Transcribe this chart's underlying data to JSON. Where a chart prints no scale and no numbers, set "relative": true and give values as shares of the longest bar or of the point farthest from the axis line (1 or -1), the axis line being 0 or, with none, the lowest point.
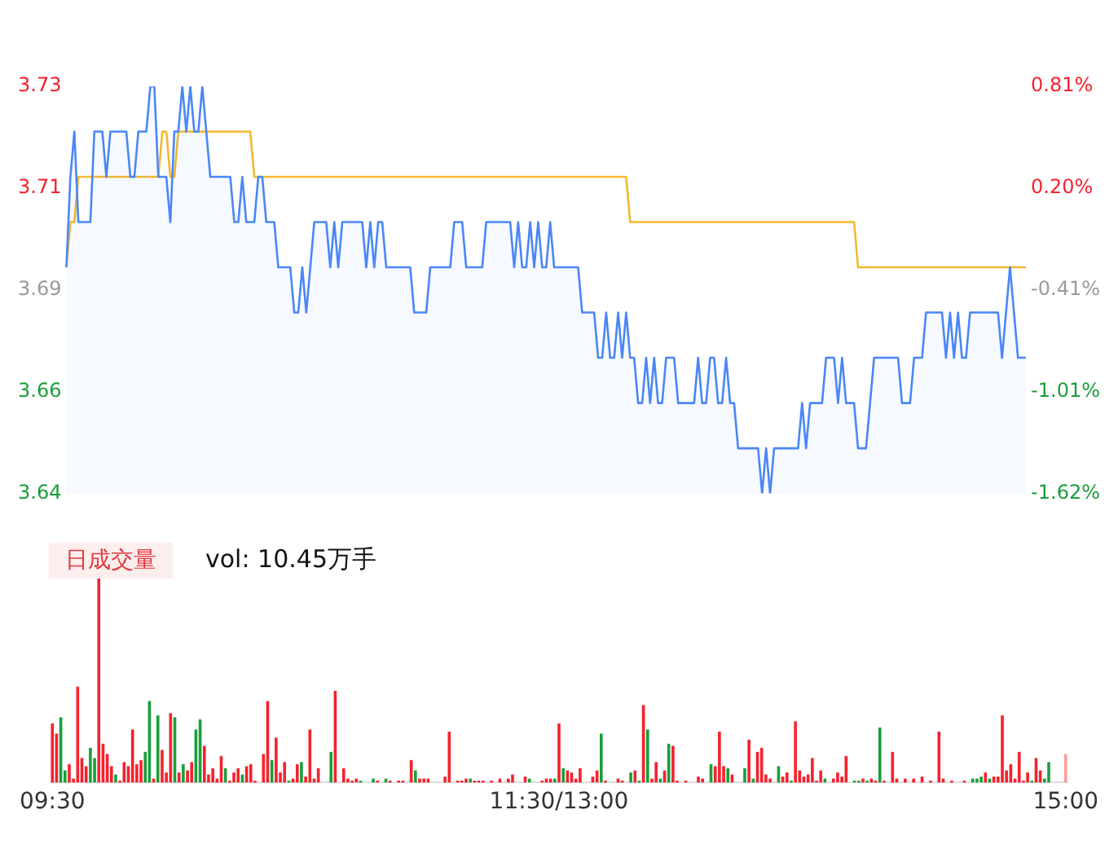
{
  "chart_data": [
    {
      "type": "line",
      "categories": [
        null,
        null,
        null,
        null,
        null,
        null,
        null,
        null,
        null,
        null,
        null,
        null,
        null,
        null,
        null,
        null,
        null,
        null,
        null,
        null,
        null,
        null,
        null,
        null,
        null,
        null,
        null,
        null,
        null,
        null,
        null,
        null,
        null,
        null,
        null,
        null,
        null,
        null,
        null,
        null,
        null,
        null,
        null,
        null,
        null,
        null,
        null,
        null,
        null,
        null,
        null,
        null,
        null,
        null,
        null,
        null,
        null,
        null,
        null,
        null,
        null,
        null,
        null,
        null,
        null,
        null,
        null,
        null,
        null,
        null,
        null,
        null,
        null,
        null,
        null,
        null,
        null,
        null,
        null,
        null,
        null,
        null,
        null,
        null,
        null,
        null,
        null,
        null,
        null,
        null,
        null,
        null,
        null,
        null,
        null,
        null,
        null,
        null,
        null,
        null,
        null,
        null,
        null,
        null,
        null,
        null,
        null,
        null,
        null,
        null,
        null,
        null,
        null,
        null,
        null,
        null,
        null,
        null,
        null,
        null,
        null,
        null,
        null,
        null,
        null,
        null,
        null,
        null,
        null,
        null,
        null,
        null,
        null,
        null,
        null,
        null,
        null,
        null,
        null,
        null,
        null,
        null,
        null,
        null,
        null,
        null,
        null,
        null,
        null,
        null,
        null,
        null,
        null,
        null,
        null,
        null,
        null,
        null,
        null,
        null,
        null,
        null,
        null,
        null,
        null,
        null,
        null,
        null,
        null,
        null,
        null,
        null,
        null,
        null,
        null,
        null,
        null,
        null,
        null,
        null,
        null,
        null,
        null,
        null,
        null,
        null,
        null,
        null,
        null,
        null,
        null,
        null,
        null,
        null,
        null,
        null,
        null,
        null,
        null,
        null,
        null,
        null,
        null,
        null,
        null,
        null,
        null,
        null,
        null,
        null,
        null,
        null,
        null,
        null,
        null,
        null,
        null,
        null,
        null,
        null,
        null,
        null,
        null,
        null,
        null,
        null,
        null,
        null,
        null,
        null,
        null,
        null,
        null,
        null,
        null,
        null,
        null,
        null,
        null,
        null,
        null
      ],
      "series": [
        {
          "type": "area",
          "color": "#4a86f7",
          "values": [
            3.69,
            3.71,
            3.72,
            3.7,
            3.7,
            3.7,
            3.7,
            3.72,
            3.72,
            3.72,
            3.71,
            3.72,
            3.72,
            3.72,
            3.72,
            3.72,
            3.71,
            3.71,
            3.72,
            3.72,
            3.72,
            3.73,
            3.73,
            3.71,
            3.71,
            3.71,
            3.7,
            3.72,
            3.72,
            3.73,
            3.72,
            3.73,
            3.72,
            3.72,
            3.73,
            3.72,
            3.71,
            3.71,
            3.71,
            3.71,
            3.71,
            3.71,
            3.7,
            3.7,
            3.71,
            3.7,
            3.7,
            3.7,
            3.71,
            3.71,
            3.7,
            3.7,
            3.7,
            3.69,
            3.69,
            3.69,
            3.69,
            3.68,
            3.68,
            3.69,
            3.68,
            3.69,
            3.7,
            3.7,
            3.7,
            3.7,
            3.69,
            3.7,
            3.69,
            3.7,
            3.7,
            3.7,
            3.7,
            3.7,
            3.7,
            3.69,
            3.7,
            3.69,
            3.7,
            3.7,
            3.69,
            3.69,
            3.69,
            3.69,
            3.69,
            3.69,
            3.69,
            3.68,
            3.68,
            3.68,
            3.68,
            3.69,
            3.69,
            3.69,
            3.69,
            3.69,
            3.69,
            3.7,
            3.7,
            3.7,
            3.69,
            3.69,
            3.69,
            3.69,
            3.69,
            3.7,
            3.7,
            3.7,
            3.7,
            3.7,
            3.7,
            3.7,
            3.69,
            3.7,
            3.69,
            3.69,
            3.7,
            3.69,
            3.7,
            3.69,
            3.69,
            3.7,
            3.69,
            3.69,
            3.69,
            3.69,
            3.69,
            3.69,
            3.69,
            3.68,
            3.68,
            3.68,
            3.68,
            3.67,
            3.67,
            3.68,
            3.67,
            3.67,
            3.68,
            3.67,
            3.68,
            3.67,
            3.67,
            3.66,
            3.66,
            3.67,
            3.66,
            3.67,
            3.66,
            3.66,
            3.67,
            3.67,
            3.67,
            3.66,
            3.66,
            3.66,
            3.66,
            3.66,
            3.67,
            3.66,
            3.66,
            3.67,
            3.67,
            3.66,
            3.66,
            3.67,
            3.66,
            3.66,
            3.65,
            3.65,
            3.65,
            3.65,
            3.65,
            3.65,
            3.64,
            3.65,
            3.64,
            3.65,
            3.65,
            3.65,
            3.65,
            3.65,
            3.65,
            3.65,
            3.66,
            3.65,
            3.66,
            3.66,
            3.66,
            3.66,
            3.67,
            3.67,
            3.67,
            3.66,
            3.67,
            3.66,
            3.66,
            3.66,
            3.65,
            3.65,
            3.65,
            3.66,
            3.67,
            3.67,
            3.67,
            3.67,
            3.67,
            3.67,
            3.67,
            3.66,
            3.66,
            3.66,
            3.67,
            3.67,
            3.67,
            3.68,
            3.68,
            3.68,
            3.68,
            3.68,
            3.67,
            3.68,
            3.67,
            3.68,
            3.67,
            3.67,
            3.68,
            3.68,
            3.68,
            3.68,
            3.68,
            3.68,
            3.68,
            3.68,
            3.67,
            3.68,
            3.69,
            3.68,
            3.67,
            3.67,
            3.67
          ]
        },
        {
          "type": "line",
          "color": "#f5b82e",
          "values": [
            3.69,
            3.7,
            3.7,
            3.71,
            3.71,
            3.71,
            3.71,
            3.71,
            3.71,
            3.71,
            3.71,
            3.71,
            3.71,
            3.71,
            3.71,
            3.71,
            3.71,
            3.71,
            3.71,
            3.71,
            3.71,
            3.71,
            3.71,
            3.71,
            3.72,
            3.72,
            3.71,
            3.71,
            3.72,
            3.72,
            3.72,
            3.72,
            3.72,
            3.72,
            3.72,
            3.72,
            3.72,
            3.72,
            3.72,
            3.72,
            3.72,
            3.72,
            3.72,
            3.72,
            3.72,
            3.72,
            3.72,
            3.71,
            3.71,
            3.71,
            3.71,
            3.71,
            3.71,
            3.71,
            3.71,
            3.71,
            3.71,
            3.71,
            3.71,
            3.71,
            3.71,
            3.71,
            3.71,
            3.71,
            3.71,
            3.71,
            3.71,
            3.71,
            3.71,
            3.71,
            3.71,
            3.71,
            3.71,
            3.71,
            3.71,
            3.71,
            3.71,
            3.71,
            3.71,
            3.71,
            3.71,
            3.71,
            3.71,
            3.71,
            3.71,
            3.71,
            3.71,
            3.71,
            3.71,
            3.71,
            3.71,
            3.71,
            3.71,
            3.71,
            3.71,
            3.71,
            3.71,
            3.71,
            3.71,
            3.71,
            3.71,
            3.71,
            3.71,
            3.71,
            3.71,
            3.71,
            3.71,
            3.71,
            3.71,
            3.71,
            3.71,
            3.71,
            3.71,
            3.71,
            3.71,
            3.71,
            3.71,
            3.71,
            3.71,
            3.71,
            3.71,
            3.71,
            3.71,
            3.71,
            3.71,
            3.71,
            3.71,
            3.71,
            3.71,
            3.71,
            3.71,
            3.71,
            3.71,
            3.71,
            3.71,
            3.71,
            3.71,
            3.71,
            3.71,
            3.71,
            3.71,
            3.7,
            3.7,
            3.7,
            3.7,
            3.7,
            3.7,
            3.7,
            3.7,
            3.7,
            3.7,
            3.7,
            3.7,
            3.7,
            3.7,
            3.7,
            3.7,
            3.7,
            3.7,
            3.7,
            3.7,
            3.7,
            3.7,
            3.7,
            3.7,
            3.7,
            3.7,
            3.7,
            3.7,
            3.7,
            3.7,
            3.7,
            3.7,
            3.7,
            3.7,
            3.7,
            3.7,
            3.7,
            3.7,
            3.7,
            3.7,
            3.7,
            3.7,
            3.7,
            3.7,
            3.7,
            3.7,
            3.7,
            3.7,
            3.7,
            3.7,
            3.7,
            3.7,
            3.7,
            3.7,
            3.7,
            3.7,
            3.7,
            3.69,
            3.69,
            3.69,
            3.69,
            3.69,
            3.69,
            3.69,
            3.69,
            3.69,
            3.69,
            3.69,
            3.69,
            3.69,
            3.69,
            3.69,
            3.69,
            3.69,
            3.69,
            3.69,
            3.69,
            3.69,
            3.69,
            3.69,
            3.69,
            3.69,
            3.69,
            3.69,
            3.69,
            3.69,
            3.69,
            3.69,
            3.69,
            3.69,
            3.69,
            3.69,
            3.69,
            3.69,
            3.69,
            3.69,
            3.69,
            3.69,
            3.69,
            3.69
          ]
        }
      ],
      "ylim": [
        3.64,
        3.73
      ],
      "yticks": [
        {
          "value": 3.64,
          "label": "3.64"
        },
        {
          "value": 3.6625,
          "label": "3.66"
        },
        {
          "value": 3.685,
          "label": "3.69"
        },
        {
          "value": 3.7075,
          "label": "3.71"
        },
        {
          "value": 3.73,
          "label": "3.73"
        }
      ],
      "y2lim": [
        -1.62,
        0.81
      ],
      "y2ticks": [
        {
          "value": -1.62,
          "label": "-1.62%"
        },
        {
          "value": -1.0125,
          "label": "-1.01%"
        },
        {
          "value": -0.405,
          "label": "-0.41%"
        },
        {
          "value": 0.2025,
          "label": "0.20%"
        },
        {
          "value": 0.81,
          "label": "0.81%"
        }
      ],
      "tick_labels": "y",
      "marker": "none"
    },
    {
      "type": "bar",
      "relative": true,
      "annotations": [
        "日成交量",
        "vol: 10.45万手"
      ],
      "categories": [
        "09:30",
        null,
        null,
        null,
        null,
        null,
        null,
        null,
        null,
        null,
        null,
        null,
        null,
        null,
        null,
        null,
        null,
        null,
        null,
        null,
        null,
        null,
        null,
        null,
        null,
        null,
        null,
        null,
        null,
        null,
        null,
        null,
        null,
        null,
        null,
        null,
        null,
        null,
        null,
        null,
        null,
        null,
        null,
        null,
        null,
        null,
        null,
        null,
        null,
        null,
        null,
        null,
        null,
        null,
        null,
        null,
        null,
        null,
        null,
        null,
        null,
        null,
        null,
        null,
        null,
        null,
        null,
        null,
        null,
        null,
        null,
        null,
        null,
        null,
        null,
        null,
        null,
        null,
        null,
        null,
        null,
        null,
        null,
        null,
        null,
        null,
        null,
        null,
        null,
        null,
        null,
        null,
        null,
        null,
        null,
        null,
        null,
        null,
        null,
        null,
        null,
        null,
        null,
        null,
        null,
        null,
        null,
        null,
        null,
        null,
        null,
        null,
        null,
        null,
        null,
        null,
        null,
        null,
        null,
        null,
        "11:30/13:00",
        null,
        null,
        null,
        null,
        null,
        null,
        null,
        null,
        null,
        null,
        null,
        null,
        null,
        null,
        null,
        null,
        null,
        null,
        null,
        null,
        null,
        null,
        null,
        null,
        null,
        null,
        null,
        null,
        null,
        null,
        null,
        null,
        null,
        null,
        null,
        null,
        null,
        null,
        null,
        null,
        null,
        null,
        null,
        null,
        null,
        null,
        null,
        null,
        null,
        null,
        null,
        null,
        null,
        null,
        null,
        null,
        null,
        null,
        null,
        null,
        null,
        null,
        null,
        null,
        null,
        null,
        null,
        null,
        null,
        null,
        null,
        null,
        null,
        null,
        null,
        null,
        null,
        null,
        null,
        null,
        null,
        null,
        null,
        null,
        null,
        null,
        null,
        null,
        null,
        null,
        null,
        null,
        null,
        null,
        null,
        null,
        null,
        null,
        null,
        null,
        null,
        null,
        null,
        null,
        null,
        null,
        null,
        null,
        null,
        null,
        null,
        null,
        null,
        null,
        null,
        null,
        null,
        null,
        null,
        "15:00"
      ],
      "values": [
        0.29,
        0.24,
        0.32,
        0.06,
        0.09,
        0.02,
        0.47,
        0.12,
        0.08,
        0.17,
        0.12,
        1,
        0.19,
        0.14,
        0.08,
        0.04,
        0.01,
        0.1,
        0.08,
        0.26,
        0.09,
        0.11,
        0.15,
        0.4,
        0.02,
        0.33,
        0.16,
        0.05,
        0.34,
        0.32,
        0.05,
        0.09,
        0.06,
        0.1,
        0.26,
        0.31,
        0.18,
        0.04,
        0.07,
        0.02,
        0.13,
        0.07,
        0.01,
        0.05,
        0.07,
        0.04,
        0.08,
        0.09,
        0.01,
        null,
        0.14,
        0.4,
        0.11,
        0.22,
        0.05,
        0.1,
        0.01,
        0.02,
        0.09,
        0.1,
        0.03,
        0.26,
        0.02,
        0.07,
        null,
        null,
        0.15,
        0.45,
        null,
        0.07,
        0.02,
        0.01,
        0.02,
        0.01,
        null,
        null,
        0.02,
        0.01,
        null,
        0.02,
        0.01,
        null,
        0.01,
        0.01,
        null,
        0.11,
        0.06,
        0.02,
        0.02,
        0.02,
        null,
        null,
        null,
        0.03,
        0.25,
        null,
        0.01,
        0.01,
        0.02,
        0.02,
        0.01,
        0.01,
        0.01,
        null,
        0.01,
        null,
        0.02,
        null,
        0.02,
        0.04,
        null,
        null,
        0.03,
        0.02,
        null,
        null,
        0.01,
        0.02,
        0.02,
        0.02,
        0.29,
        0.07,
        0.06,
        0.05,
        0.02,
        0.07,
        null,
        null,
        0.03,
        0.06,
        0.24,
        0.01,
        null,
        null,
        0.02,
        0.01,
        null,
        0.05,
        0.06,
        0.01,
        0.38,
        0.26,
        0.02,
        0.1,
        0.02,
        0.06,
        0.19,
        0.18,
        0.01,
        null,
        0.01,
        null,
        null,
        0.03,
        0.02,
        null,
        0.09,
        0.08,
        0.25,
        0.08,
        0.07,
        0.04,
        null,
        null,
        0.07,
        0.21,
        0.02,
        0.15,
        0.17,
        0.04,
        0.02,
        null,
        0.08,
        0.03,
        0.05,
        0.01,
        0.3,
        0.06,
        0.03,
        0.04,
        0.12,
        0.01,
        0.06,
        0.02,
        null,
        0.02,
        0.05,
        0.03,
        0.13,
        null,
        0.01,
        0.01,
        0.02,
        0.01,
        0.02,
        0.01,
        0.27,
        0.01,
        null,
        0.15,
        0.02,
        null,
        0.02,
        null,
        0.02,
        null,
        0.03,
        null,
        0.01,
        null,
        0.25,
        0.02,
        null,
        0.01,
        null,
        null,
        0.01,
        null,
        0.02,
        0.02,
        0.03,
        0.05,
        0.02,
        0.03,
        0.03,
        0.33,
        0.06,
        0.09,
        0.02,
        0.15,
        0.01,
        0.05,
        0.01,
        0.12,
        0.06,
        0.02,
        0.1,
        null,
        null,
        null,
        0.14
      ],
      "colors": [
        "#f5222d",
        "#f5222d",
        "#1a9e3a",
        "#1a9e3a",
        "#f5222d",
        "#f5222d",
        "#f5222d",
        "#f5222d",
        "#f5222d",
        "#1a9e3a",
        "#1a9e3a",
        "#f5222d",
        "#f5222d",
        "#f5222d",
        "#f5222d",
        "#1a9e3a",
        "#f5222d",
        "#f5222d",
        "#f5222d",
        "#f5222d",
        "#f5222d",
        "#f5222d",
        "#1a9e3a",
        "#1a9e3a",
        "#f5222d",
        "#1a9e3a",
        "#f5222d",
        "#f5222d",
        "#f5222d",
        "#1a9e3a",
        "#f5222d",
        "#1a9e3a",
        "#f5222d",
        "#f5222d",
        "#1a9e3a",
        "#1a9e3a",
        "#f5222d",
        "#f5222d",
        "#f5222d",
        "#f5222d",
        "#f5222d",
        "#1a9e3a",
        "#f5222d",
        "#f5222d",
        "#f5222d",
        "#1a9e3a",
        "#f5222d",
        "#f5222d",
        "#f5222d",
        "#f5222d",
        "#f5222d",
        "#f5222d",
        "#1a9e3a",
        "#f5222d",
        "#f5222d",
        "#f5222d",
        "#1a9e3a",
        "#f5222d",
        "#f5222d",
        "#1a9e3a",
        "#f5222d",
        "#f5222d",
        "#f5222d",
        "#f5222d",
        "#f5222d",
        "#f5222d",
        "#1a9e3a",
        "#f5222d",
        "#f5222d",
        "#f5222d",
        "#f5222d",
        "#f5222d",
        "#f5222d",
        "#1a9e3a",
        "#f5222d",
        "#f5222d",
        "#1a9e3a",
        "#f5222d",
        "#f5222d",
        "#1a9e3a",
        "#f5222d",
        "#f5222d",
        "#f5222d",
        "#f5222d",
        "#f5222d",
        "#f5222d",
        "#1a9e3a",
        "#f5222d",
        "#f5222d",
        "#f5222d",
        "#f5222d",
        "#f5222d",
        "#f5222d",
        "#f5222d",
        "#f5222d",
        "#f5222d",
        "#f5222d",
        "#f5222d",
        "#f5222d",
        "#1a9e3a",
        "#f5222d",
        "#f5222d",
        "#f5222d",
        "#f5222d",
        "#f5222d",
        "#f5222d",
        "#f5222d",
        "#f5222d",
        "#f5222d",
        "#f5222d",
        "#f5222d",
        "#f5222d",
        "#f5222d",
        "#1a9e3a",
        "#f5222d",
        "#f5222d",
        "#f5222d",
        "#f5222d",
        "#f5222d",
        "#1a9e3a",
        "#f5222d",
        "#1a9e3a",
        "#f5222d",
        "#f5222d",
        "#f5222d",
        "#f5222d",
        "#f5222d",
        "#f5222d",
        "#f5222d",
        "#f5222d",
        "#1a9e3a",
        "#f5222d",
        "#f5222d",
        "#f5222d",
        "#f5222d",
        "#f5222d",
        "#f5222d",
        "#1a9e3a",
        "#f5222d",
        "#1a9e3a",
        "#f5222d",
        "#1a9e3a",
        "#f5222d",
        "#f5222d",
        "#1a9e3a",
        "#f5222d",
        "#1a9e3a",
        "#f5222d",
        "#f5222d",
        "#f5222d",
        "#f5222d",
        "#f5222d",
        "#f5222d",
        "#f5222d",
        "#f5222d",
        "#f5222d",
        "#1a9e3a",
        "#f5222d",
        "#f5222d",
        "#f5222d",
        "#1a9e3a",
        "#f5222d",
        "#f5222d",
        "#f5222d",
        "#1a9e3a",
        "#f5222d",
        "#1a9e3a",
        "#f5222d",
        "#f5222d",
        "#f5222d",
        "#f5222d",
        "#f5222d",
        "#1a9e3a",
        "#f5222d",
        "#f5222d",
        "#1a9e3a",
        "#f5222d",
        "#f5222d",
        "#f5222d",
        "#f5222d",
        "#f5222d",
        "#f5222d",
        "#f5222d",
        "#1a9e3a",
        "#f5222d",
        "#f5222d",
        "#f5222d",
        "#f5222d",
        "#f5222d",
        "#f5222d",
        "#1a9e3a",
        "#1a9e3a",
        "#f5222d",
        "#1a9e3a",
        "#f5222d",
        "#f5222d",
        "#1a9e3a",
        "#f5222d",
        "#f5222d",
        "#f5222d",
        "#f5222d",
        "#f5222d",
        "#f5222d",
        "#f5222d",
        "#f5222d",
        "#f5222d",
        "#f5222d",
        "#f5222d",
        "#f5222d",
        "#f5222d",
        "#f5222d",
        "#f5222d",
        "#f5222d",
        "#f5222d",
        "#f5222d",
        "#f5222d",
        "#f5222d",
        "#f5222d",
        "#1a9e3a",
        "#1a9e3a",
        "#1a9e3a",
        "#f5222d",
        "#1a9e3a",
        "#f5222d",
        "#f5222d",
        "#f5222d",
        "#f5222d",
        "#f5222d",
        "#f5222d",
        "#f5222d",
        "#f5222d",
        "#f5222d",
        "#1a9e3a",
        "#f5222d",
        "#f5222d",
        "#1a9e3a",
        "#1a9e3a",
        "#f5222d",
        "#f5222d",
        "#f5222d",
        "#ff9c9c"
      ],
      "tick_labels": "x"
    }
  ]
}
